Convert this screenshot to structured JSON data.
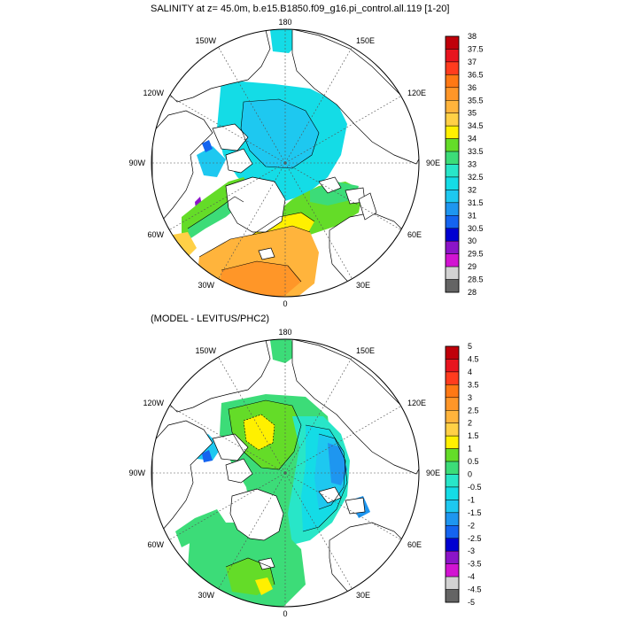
{
  "panel1": {
    "title": "SALINITY at z=  45.0m, b.e15.B1850.f09_g16.pi_control.all.119 [1-20]",
    "lon_labels": [
      "180",
      "150E",
      "120E",
      "90E",
      "60E",
      "30E",
      "0",
      "30W",
      "60W",
      "90W",
      "120W",
      "150W"
    ],
    "colorbar": {
      "labels": [
        "38",
        "37.5",
        "37",
        "36.5",
        "36",
        "35.5",
        "35",
        "34.5",
        "34",
        "33.5",
        "33",
        "32.5",
        "32",
        "31.5",
        "31",
        "30.5",
        "30",
        "29.5",
        "29",
        "28.5",
        "28"
      ],
      "colors": [
        "#c0000a",
        "#e8141e",
        "#ff3c1e",
        "#ff7814",
        "#ff9628",
        "#ffb43c",
        "#ffd046",
        "#fff000",
        "#64dc28",
        "#3cdc78",
        "#28e6c8",
        "#14dce6",
        "#1ec8f0",
        "#1e96f0",
        "#1464f0",
        "#0000d2",
        "#8c14c8",
        "#d214d2",
        "#d2d2d2",
        "#646464"
      ]
    }
  },
  "panel2": {
    "title": "(MODEL - LEVITUS/PHC2)",
    "lon_labels": [
      "180",
      "150E",
      "120E",
      "90E",
      "60E",
      "30E",
      "0",
      "30W",
      "60W",
      "90W",
      "120W",
      "150W"
    ],
    "colorbar": {
      "labels": [
        "5",
        "4.5",
        "4",
        "3.5",
        "3",
        "2.5",
        "2",
        "1.5",
        "1",
        "0.5",
        "0",
        "-0.5",
        "-1",
        "-1.5",
        "-2",
        "-2.5",
        "-3",
        "-3.5",
        "-4",
        "-4.5",
        "-5"
      ],
      "colors": [
        "#c0000a",
        "#e8141e",
        "#ff3c1e",
        "#ff7814",
        "#ff9628",
        "#ffb43c",
        "#ffd046",
        "#fff000",
        "#64dc28",
        "#3cdc78",
        "#28e6c8",
        "#14dce6",
        "#1ec8f0",
        "#1e96f0",
        "#1464f0",
        "#0000d2",
        "#8c14c8",
        "#d214d2",
        "#d2d2d2",
        "#646464"
      ]
    }
  }
}
